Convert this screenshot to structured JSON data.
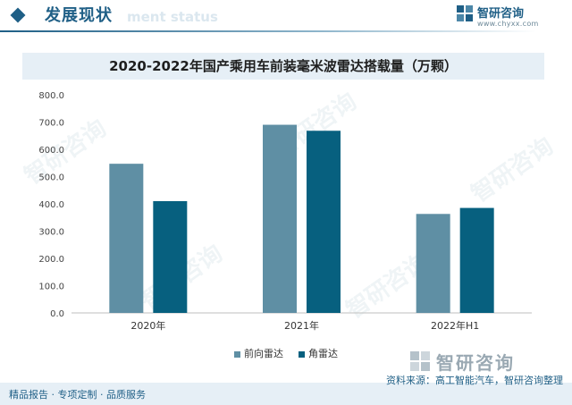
{
  "header": {
    "title": "发展现状",
    "ghost_text": "ment status"
  },
  "brand": {
    "name": "智研咨询",
    "url": "www.chyxx.com"
  },
  "watermark_text": "智研咨询",
  "colors": {
    "accent": "#1f5f86",
    "series_front": "#5f8fa4",
    "series_corner": "#07607f",
    "band": "#e6eff6"
  },
  "chart_data": {
    "type": "bar",
    "title": "2020-2022年国产乘用车前装毫米波雷达搭载量（万颗）",
    "categories": [
      "2020年",
      "2021年",
      "2022年H1"
    ],
    "series": [
      {
        "name": "前向雷达",
        "values": [
          547,
          690,
          363
        ]
      },
      {
        "name": "角雷达",
        "values": [
          410,
          668,
          385
        ]
      }
    ],
    "ylim": [
      0,
      800
    ],
    "yticks": [
      "0.0",
      "100.0",
      "200.0",
      "300.0",
      "400.0",
      "500.0",
      "600.0",
      "700.0",
      "800.0"
    ],
    "grid": false,
    "legend": "bottom"
  },
  "footer": {
    "left": "精品报告 · 专项定制 · 品质服务",
    "source": "资料来源：高工智能汽车，智研咨询整理",
    "logo_text": "智研咨询"
  }
}
